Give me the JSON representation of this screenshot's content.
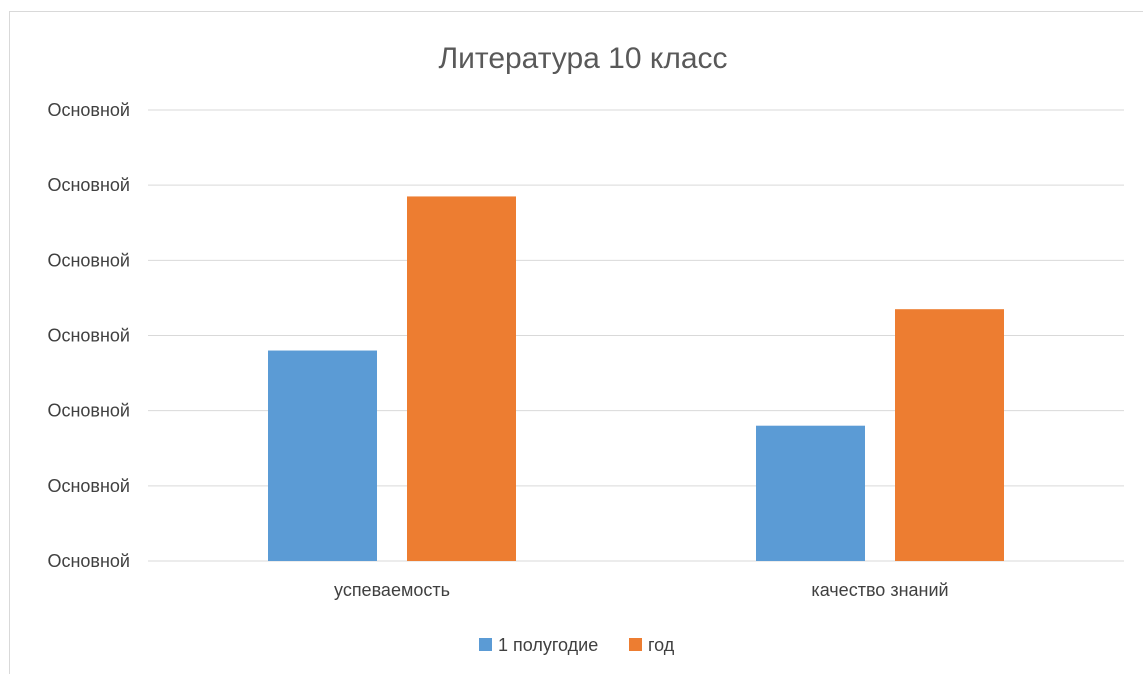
{
  "chart_data": {
    "type": "bar",
    "title": "Литература 10 класс",
    "categories": [
      "успеваемость",
      "качество знаний"
    ],
    "series": [
      {
        "name": "1 полугодие",
        "values": [
          2.8,
          1.8
        ],
        "color": "#5b9bd5"
      },
      {
        "name": "год",
        "values": [
          4.85,
          3.35
        ],
        "color": "#ed7d31"
      }
    ],
    "y_tick_labels": [
      "Основной",
      "Основной",
      "Основной",
      "Основной",
      "Основной",
      "Основной",
      "Основной"
    ],
    "ylim": [
      0,
      6
    ],
    "xlabel": "",
    "ylabel": "",
    "grid": true,
    "legend_position": "bottom"
  }
}
